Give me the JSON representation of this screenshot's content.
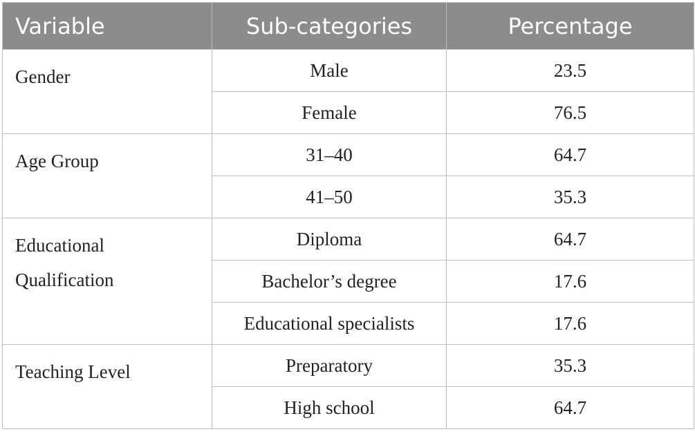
{
  "table": {
    "headers": {
      "variable": "Variable",
      "subcategories": "Sub-categories",
      "percentage": "Percentage"
    },
    "groups": [
      {
        "variable": "Gender",
        "rows": [
          {
            "sub": "Male",
            "pct": "23.5"
          },
          {
            "sub": "Female",
            "pct": "76.5"
          }
        ]
      },
      {
        "variable": "Age Group",
        "rows": [
          {
            "sub": "31–40",
            "pct": "64.7"
          },
          {
            "sub": "41–50",
            "pct": "35.3"
          }
        ]
      },
      {
        "variable": "Educational Qualification",
        "rows": [
          {
            "sub": "Diploma",
            "pct": "64.7"
          },
          {
            "sub": "Bachelor’s degree",
            "pct": "17.6"
          },
          {
            "sub": "Educational specialists",
            "pct": "17.6"
          }
        ]
      },
      {
        "variable": "Teaching Level",
        "rows": [
          {
            "sub": "Preparatory",
            "pct": "35.3"
          },
          {
            "sub": "High school",
            "pct": "64.7"
          }
        ]
      }
    ],
    "colors": {
      "header_bg": "#8c8c8c",
      "header_text": "#ffffff",
      "border": "#bfbfbf",
      "body_text": "#222222"
    }
  }
}
